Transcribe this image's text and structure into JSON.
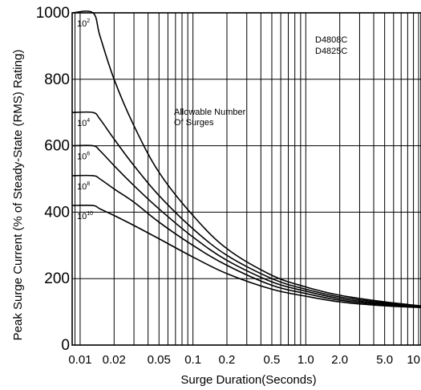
{
  "chart_data": {
    "type": "line",
    "xlabel": "Surge Duration(Seconds)",
    "ylabel": "Peak Surge Current (% of Steady-State (RMS) Rating)",
    "x_scale": "log",
    "xlim": [
      0.0085,
      10.5
    ],
    "ylim": [
      0,
      1000
    ],
    "grid": true,
    "x_ticks": [
      {
        "value": 0.01,
        "label": "0.01"
      },
      {
        "value": 0.02,
        "label": "0.02"
      },
      {
        "value": 0.05,
        "label": "0.05"
      },
      {
        "value": 0.1,
        "label": "0.1"
      },
      {
        "value": 0.2,
        "label": "0.2"
      },
      {
        "value": 0.5,
        "label": "0.5"
      },
      {
        "value": 1.0,
        "label": "1.0"
      },
      {
        "value": 2.0,
        "label": "2.0"
      },
      {
        "value": 5.0,
        "label": "5.0"
      },
      {
        "value": 10,
        "label": "10"
      }
    ],
    "y_ticks": [
      {
        "value": 0,
        "label": "0"
      },
      {
        "value": 200,
        "label": "200"
      },
      {
        "value": 400,
        "label": "400"
      },
      {
        "value": 600,
        "label": "600"
      },
      {
        "value": 800,
        "label": "800"
      },
      {
        "value": 1000,
        "label": "1000"
      }
    ],
    "legend": [
      "D4808C",
      "D4825C"
    ],
    "annotation": [
      "Allowable Number",
      "Of Surges"
    ],
    "series": [
      {
        "base": "10",
        "exponent": "2",
        "x": [
          0.0085,
          0.013,
          0.015,
          0.02,
          0.03,
          0.05,
          0.1,
          0.2,
          0.5,
          1,
          2,
          5,
          10.5
        ],
        "y": [
          1000,
          1000,
          930,
          800,
          660,
          520,
          390,
          290,
          210,
          175,
          150,
          130,
          118
        ]
      },
      {
        "base": "10",
        "exponent": "4",
        "x": [
          0.0085,
          0.013,
          0.015,
          0.02,
          0.03,
          0.05,
          0.1,
          0.2,
          0.5,
          1,
          2,
          5,
          10.5
        ],
        "y": [
          700,
          700,
          680,
          620,
          540,
          450,
          350,
          270,
          200,
          168,
          145,
          127,
          117
        ]
      },
      {
        "base": "10",
        "exponent": "6",
        "x": [
          0.0085,
          0.013,
          0.015,
          0.02,
          0.03,
          0.05,
          0.1,
          0.2,
          0.5,
          1,
          2,
          5,
          10.5
        ],
        "y": [
          600,
          600,
          585,
          540,
          480,
          410,
          325,
          255,
          190,
          162,
          140,
          124,
          116
        ]
      },
      {
        "base": "10",
        "exponent": "8",
        "x": [
          0.0085,
          0.013,
          0.015,
          0.02,
          0.03,
          0.05,
          0.1,
          0.2,
          0.5,
          1,
          2,
          5,
          10.5
        ],
        "y": [
          510,
          510,
          500,
          470,
          430,
          370,
          300,
          240,
          180,
          155,
          135,
          121,
          115
        ]
      },
      {
        "base": "10",
        "exponent": "10",
        "x": [
          0.0085,
          0.013,
          0.015,
          0.02,
          0.03,
          0.05,
          0.1,
          0.2,
          0.5,
          1,
          2,
          5,
          10.5
        ],
        "y": [
          420,
          420,
          410,
          390,
          360,
          320,
          265,
          215,
          168,
          147,
          130,
          118,
          113
        ]
      }
    ]
  }
}
